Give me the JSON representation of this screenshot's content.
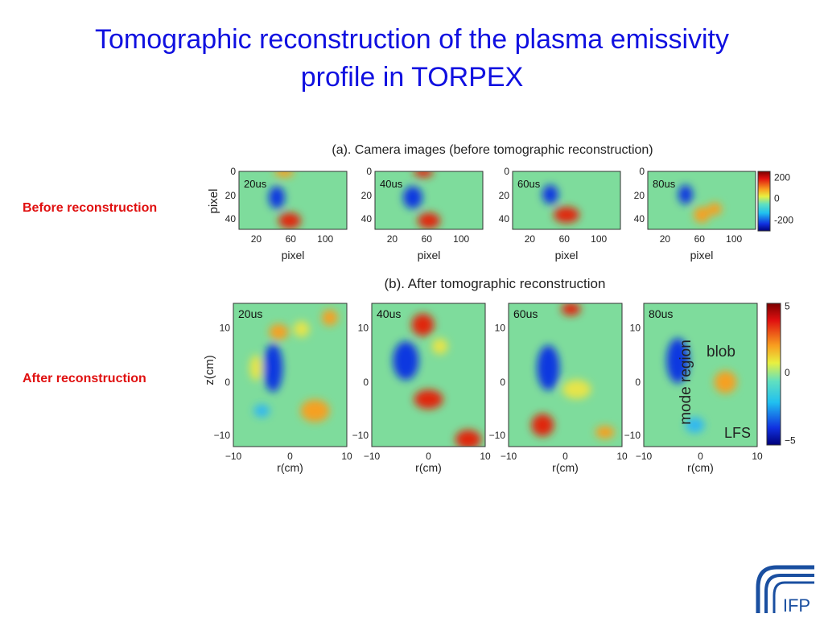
{
  "title": [
    "Tomographic reconstruction of the plasma emissivity",
    "profile in TORPEX"
  ],
  "side_labels": {
    "before": "Before reconstruction",
    "after": "After reconstruction"
  },
  "figure": {
    "times": [
      "20us",
      "40us",
      "60us",
      "80us"
    ],
    "a": {
      "heading": "(a).  Camera images (before tomographic reconstruction)",
      "xlabel": "pixel",
      "ylabel": "pixel",
      "yticks": [
        "0",
        "20",
        "40"
      ],
      "xticks": [
        "20",
        "60",
        "100"
      ],
      "colorbar_ticks": [
        "200",
        "0",
        "-200"
      ]
    },
    "b": {
      "heading": "(b).  After tomographic reconstruction",
      "xlabel": "r(cm)",
      "ylabel": "z(cm)",
      "yticks": [
        "10",
        "0",
        "−10"
      ],
      "xticks": [
        "−10",
        "0",
        "10"
      ],
      "colorbar_ticks": [
        "5",
        "0",
        "−5"
      ],
      "annotations": {
        "mode": "mode region",
        "blob": "blob",
        "lfs": "LFS"
      }
    }
  },
  "logo": "IFP"
}
